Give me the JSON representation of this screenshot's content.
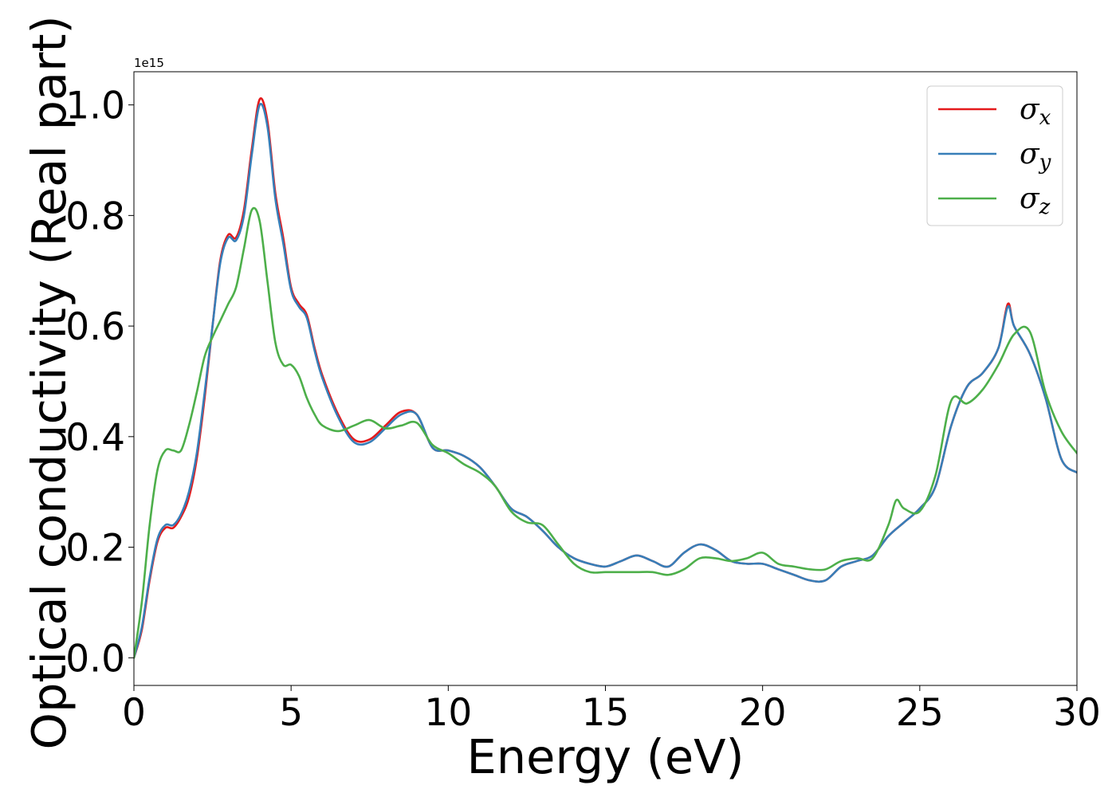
{
  "chart_data": {
    "type": "line",
    "xlabel": "Energy (eV)",
    "ylabel": "Optical conductivity (Real part)",
    "y_offset_label": "1e15",
    "xlim": [
      0,
      30
    ],
    "ylim": [
      -0.05,
      1.06
    ],
    "x_ticks": [
      0,
      5,
      10,
      15,
      20,
      25,
      30
    ],
    "x_tick_labels": [
      "0",
      "5",
      "10",
      "15",
      "20",
      "25",
      "30"
    ],
    "y_ticks": [
      0.0,
      0.2,
      0.4,
      0.6,
      0.8,
      1.0
    ],
    "y_tick_labels": [
      "0.0",
      "0.2",
      "0.4",
      "0.6",
      "0.8",
      "1.0"
    ],
    "grid": false,
    "legend_position": "top-right",
    "colors": {
      "sigma_x": "#e41a1c",
      "sigma_y": "#377eb8",
      "sigma_z": "#4daf4a"
    },
    "series": [
      {
        "name": "σx",
        "legend_base": "σ",
        "legend_sub": "x",
        "color": "#e41a1c",
        "x": [
          0,
          0.25,
          0.5,
          0.75,
          1.0,
          1.25,
          1.5,
          1.75,
          2.0,
          2.25,
          2.5,
          2.75,
          3.0,
          3.25,
          3.5,
          3.75,
          4.0,
          4.25,
          4.5,
          4.75,
          5.0,
          5.25,
          5.5,
          5.75,
          6.0,
          6.5,
          7.0,
          7.5,
          8.0,
          8.5,
          9.0,
          9.5,
          10.0,
          10.5,
          11.0,
          11.5,
          12.0,
          12.5,
          13.0,
          13.5,
          14.0,
          14.5,
          15.0,
          15.5,
          16.0,
          16.5,
          17.0,
          17.5,
          18.0,
          18.5,
          19.0,
          19.5,
          20.0,
          20.5,
          21.0,
          21.5,
          22.0,
          22.5,
          23.0,
          23.5,
          24.0,
          24.5,
          25.0,
          25.5,
          26.0,
          26.5,
          27.0,
          27.5,
          27.8,
          28.0,
          28.5,
          29.0,
          29.5,
          30.0
        ],
        "values": [
          0.0,
          0.05,
          0.14,
          0.21,
          0.235,
          0.235,
          0.255,
          0.29,
          0.36,
          0.47,
          0.6,
          0.72,
          0.765,
          0.76,
          0.81,
          0.92,
          1.01,
          0.97,
          0.84,
          0.76,
          0.67,
          0.64,
          0.62,
          0.56,
          0.51,
          0.44,
          0.395,
          0.395,
          0.42,
          0.445,
          0.44,
          0.38,
          0.375,
          0.365,
          0.345,
          0.31,
          0.27,
          0.255,
          0.23,
          0.2,
          0.18,
          0.17,
          0.165,
          0.175,
          0.185,
          0.175,
          0.165,
          0.19,
          0.205,
          0.195,
          0.175,
          0.17,
          0.17,
          0.16,
          0.15,
          0.14,
          0.14,
          0.165,
          0.175,
          0.185,
          0.22,
          0.245,
          0.27,
          0.31,
          0.42,
          0.49,
          0.515,
          0.56,
          0.64,
          0.6,
          0.55,
          0.47,
          0.36,
          0.335
        ]
      },
      {
        "name": "σy",
        "legend_base": "σ",
        "legend_sub": "y",
        "color": "#377eb8",
        "x": [
          0,
          0.25,
          0.5,
          0.75,
          1.0,
          1.25,
          1.5,
          1.75,
          2.0,
          2.25,
          2.5,
          2.75,
          3.0,
          3.25,
          3.5,
          3.75,
          4.0,
          4.25,
          4.5,
          4.75,
          5.0,
          5.25,
          5.5,
          5.75,
          6.0,
          6.5,
          7.0,
          7.5,
          8.0,
          8.5,
          9.0,
          9.5,
          10.0,
          10.5,
          11.0,
          11.5,
          12.0,
          12.5,
          13.0,
          13.5,
          14.0,
          14.5,
          15.0,
          15.5,
          16.0,
          16.5,
          17.0,
          17.5,
          18.0,
          18.5,
          19.0,
          19.5,
          20.0,
          20.5,
          21.0,
          21.5,
          22.0,
          22.5,
          23.0,
          23.5,
          24.0,
          24.5,
          25.0,
          25.5,
          26.0,
          26.5,
          27.0,
          27.5,
          27.8,
          28.0,
          28.5,
          29.0,
          29.5,
          30.0
        ],
        "values": [
          0.0,
          0.055,
          0.145,
          0.215,
          0.24,
          0.24,
          0.26,
          0.3,
          0.37,
          0.48,
          0.6,
          0.715,
          0.76,
          0.755,
          0.8,
          0.91,
          1.0,
          0.96,
          0.83,
          0.75,
          0.665,
          0.635,
          0.615,
          0.555,
          0.505,
          0.435,
          0.39,
          0.39,
          0.415,
          0.44,
          0.44,
          0.38,
          0.375,
          0.365,
          0.345,
          0.31,
          0.27,
          0.255,
          0.23,
          0.2,
          0.18,
          0.17,
          0.165,
          0.175,
          0.185,
          0.175,
          0.165,
          0.19,
          0.205,
          0.195,
          0.175,
          0.17,
          0.17,
          0.16,
          0.15,
          0.14,
          0.14,
          0.165,
          0.175,
          0.185,
          0.22,
          0.245,
          0.27,
          0.31,
          0.42,
          0.49,
          0.515,
          0.56,
          0.635,
          0.6,
          0.55,
          0.47,
          0.36,
          0.335
        ]
      },
      {
        "name": "σz",
        "legend_base": "σ",
        "legend_sub": "z",
        "color": "#4daf4a",
        "x": [
          0,
          0.25,
          0.5,
          0.75,
          1.0,
          1.25,
          1.5,
          1.75,
          2.0,
          2.25,
          2.5,
          2.75,
          3.0,
          3.25,
          3.5,
          3.75,
          4.0,
          4.25,
          4.5,
          4.75,
          5.0,
          5.25,
          5.5,
          5.75,
          6.0,
          6.5,
          7.0,
          7.5,
          8.0,
          8.5,
          9.0,
          9.5,
          10.0,
          10.5,
          11.0,
          11.5,
          12.0,
          12.5,
          13.0,
          13.5,
          14.0,
          14.5,
          15.0,
          15.5,
          16.0,
          16.5,
          17.0,
          17.5,
          18.0,
          18.5,
          19.0,
          19.5,
          20.0,
          20.5,
          21.0,
          21.5,
          22.0,
          22.5,
          23.0,
          23.5,
          24.0,
          24.25,
          24.5,
          25.0,
          25.5,
          26.0,
          26.5,
          27.0,
          27.5,
          28.0,
          28.5,
          29.0,
          29.5,
          30.0
        ],
        "values": [
          0.0,
          0.1,
          0.24,
          0.34,
          0.375,
          0.375,
          0.375,
          0.42,
          0.48,
          0.545,
          0.58,
          0.61,
          0.64,
          0.67,
          0.74,
          0.81,
          0.79,
          0.68,
          0.57,
          0.53,
          0.53,
          0.51,
          0.47,
          0.44,
          0.42,
          0.41,
          0.42,
          0.43,
          0.415,
          0.42,
          0.425,
          0.385,
          0.37,
          0.35,
          0.335,
          0.31,
          0.265,
          0.245,
          0.24,
          0.205,
          0.17,
          0.155,
          0.155,
          0.155,
          0.155,
          0.155,
          0.15,
          0.16,
          0.18,
          0.18,
          0.175,
          0.18,
          0.19,
          0.17,
          0.165,
          0.16,
          0.16,
          0.175,
          0.18,
          0.18,
          0.24,
          0.285,
          0.27,
          0.265,
          0.33,
          0.465,
          0.46,
          0.485,
          0.53,
          0.585,
          0.59,
          0.48,
          0.41,
          0.37
        ]
      }
    ]
  }
}
